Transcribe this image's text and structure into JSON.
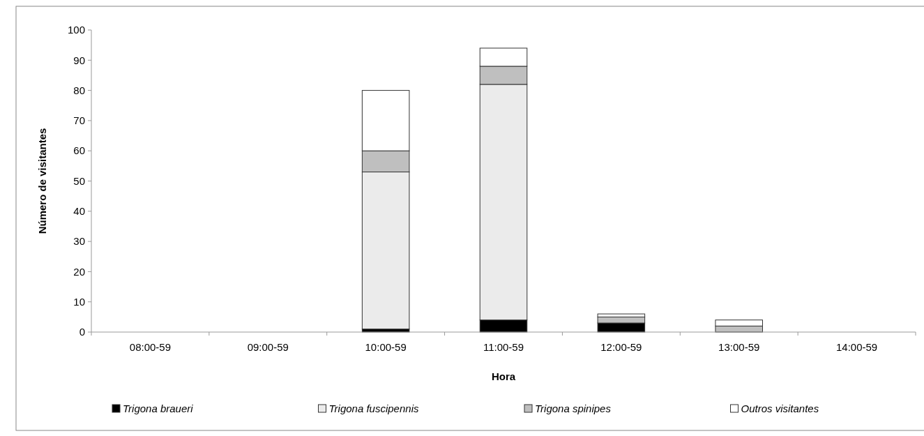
{
  "chart_data": {
    "type": "bar",
    "stacked": true,
    "xlabel": "Hora",
    "ylabel": "Número de visitantes",
    "categories": [
      "08:00-59",
      "09:00-59",
      "10:00-59",
      "11:00-59",
      "12:00-59",
      "13:00-59",
      "14:00-59"
    ],
    "series": [
      {
        "name": "Trigona braueri",
        "color": "#000000",
        "values": [
          0,
          0,
          1,
          4,
          3,
          0,
          0
        ]
      },
      {
        "name": "Trigona fuscipennis",
        "color": "#ebebeb",
        "values": [
          0,
          0,
          52,
          78,
          0,
          0,
          0
        ]
      },
      {
        "name": "Trigona spinipes",
        "color": "#bfbfbf",
        "values": [
          0,
          0,
          7,
          6,
          2,
          2,
          0
        ]
      },
      {
        "name": "Outros visitantes",
        "color": "#ffffff",
        "values": [
          0,
          0,
          20,
          6,
          1,
          2,
          0
        ]
      }
    ],
    "ylim": [
      0,
      100
    ],
    "yticks": [
      0,
      10,
      20,
      30,
      40,
      50,
      60,
      70,
      80,
      90,
      100
    ],
    "grid": false,
    "legend": "bottom"
  }
}
